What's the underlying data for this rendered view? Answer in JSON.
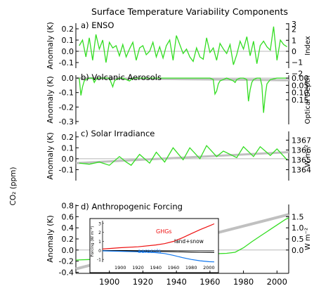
{
  "chart_data": {
    "title": "Surface Temperature Variability Components",
    "left_label": "CO₂ (ppm)",
    "x_ticks": [
      1900,
      1920,
      1940,
      1960,
      1980,
      2000
    ],
    "xlim": [
      1880,
      2007
    ],
    "colors": {
      "series": "#33dd22",
      "trend": "#c0c0c0",
      "ghg": "#ee1111",
      "aerosols": "#1177ee",
      "land": "#000000"
    },
    "panels": [
      {
        "label": "a) ENSO",
        "ylabel": "Anomaly (K)",
        "ylim": [
          -0.15,
          0.25
        ],
        "y_ticks": [
          "0.2",
          "0.1",
          "0.0",
          "-0.1"
        ],
        "y_tick_values": [
          0.2,
          0.1,
          0.0,
          -0.1
        ],
        "right_label": "Index",
        "right_ticks": [
          "3",
          "2",
          "1",
          "0",
          "−1",
          "−2"
        ],
        "right_tick_values": [
          0.245,
          0.196,
          0.098,
          0.0,
          -0.098,
          -0.196
        ],
        "series_x": [
          1882,
          1884,
          1886,
          1888,
          1890,
          1892,
          1894,
          1896,
          1898,
          1900,
          1902,
          1904,
          1906,
          1908,
          1910,
          1912,
          1914,
          1916,
          1918,
          1920,
          1922,
          1924,
          1926,
          1928,
          1930,
          1932,
          1934,
          1936,
          1938,
          1940,
          1942,
          1944,
          1946,
          1948,
          1950,
          1952,
          1954,
          1956,
          1958,
          1960,
          1962,
          1964,
          1966,
          1968,
          1970,
          1972,
          1974,
          1976,
          1978,
          1980,
          1982,
          1984,
          1986,
          1988,
          1990,
          1992,
          1994,
          1996,
          1998,
          2000,
          2002,
          2004,
          2006
        ],
        "series_y": [
          0.05,
          0.1,
          -0.05,
          0.12,
          -0.08,
          0.15,
          0.02,
          0.1,
          -0.1,
          0.08,
          0.03,
          0.05,
          -0.04,
          0.06,
          -0.05,
          0.02,
          0.08,
          -0.08,
          0.03,
          0.05,
          -0.03,
          0.0,
          0.08,
          -0.05,
          0.04,
          -0.06,
          0.05,
          0.1,
          -0.08,
          0.14,
          0.06,
          -0.02,
          0.02,
          -0.05,
          -0.09,
          0.03,
          -0.05,
          -0.07,
          0.12,
          -0.01,
          0.03,
          -0.08,
          0.07,
          0.02,
          -0.02,
          0.06,
          -0.12,
          -0.03,
          0.09,
          0.02,
          0.13,
          -0.04,
          0.09,
          -0.11,
          0.05,
          0.09,
          0.04,
          0.01,
          0.22,
          -0.08,
          0.1,
          0.06,
          0.04
        ]
      },
      {
        "label": "b) Volcanic Aerosols",
        "ylabel": "Anomaly (K)",
        "ylim": [
          -0.32,
          0.02
        ],
        "y_ticks": [
          "0.0",
          "-0.1",
          "-0.2",
          "-0.3"
        ],
        "y_tick_values": [
          0.0,
          -0.1,
          -0.2,
          -0.3
        ],
        "right_label": "Optical Depth",
        "right_ticks": [
          "0.00",
          "0.05",
          "0.10",
          "0.15"
        ],
        "right_tick_values": [
          0.0,
          -0.05,
          -0.1,
          -0.15
        ],
        "series_x": [
          1882,
          1883,
          1884,
          1885,
          1886,
          1888,
          1890,
          1891,
          1892,
          1893,
          1894,
          1896,
          1900,
          1902,
          1903,
          1904,
          1906,
          1908,
          1912,
          1913,
          1914,
          1920,
          1930,
          1940,
          1950,
          1960,
          1962,
          1963,
          1964,
          1965,
          1966,
          1968,
          1970,
          1974,
          1975,
          1976,
          1978,
          1980,
          1982,
          1983,
          1984,
          1985,
          1986,
          1988,
          1990,
          1991,
          1992,
          1993,
          1994,
          1996,
          2000,
          2004,
          2006
        ],
        "series_y": [
          0.0,
          -0.12,
          -0.06,
          -0.02,
          -0.01,
          0.0,
          0.0,
          -0.03,
          -0.01,
          0.0,
          0.0,
          0.0,
          0.0,
          -0.06,
          -0.02,
          -0.01,
          0.0,
          0.0,
          -0.02,
          -0.01,
          0.0,
          0.0,
          0.0,
          0.0,
          0.0,
          0.0,
          -0.01,
          -0.11,
          -0.09,
          -0.04,
          -0.02,
          -0.01,
          0.0,
          -0.02,
          -0.03,
          -0.01,
          0.0,
          0.0,
          -0.01,
          -0.16,
          -0.08,
          -0.03,
          -0.01,
          0.0,
          0.0,
          -0.05,
          -0.24,
          -0.12,
          -0.04,
          -0.01,
          0.0,
          0.0,
          0.0
        ],
        "trend_x": [
          1880,
          2007
        ],
        "trend_y": [
          0.0,
          -0.015
        ]
      },
      {
        "label": "c) Solar Irradiance",
        "ylabel": "Anomaly (K)",
        "ylim": [
          -0.2,
          0.25
        ],
        "y_ticks": [
          "0.2",
          "0.1",
          "0.0",
          "-0.1"
        ],
        "y_tick_values": [
          0.2,
          0.1,
          0.0,
          -0.1
        ],
        "right_label": "W m⁻²",
        "right_ticks": [
          "1367",
          "1366",
          "1365",
          "1364"
        ],
        "right_tick_values": [
          0.17,
          0.08,
          -0.01,
          -0.1
        ],
        "series_x": [
          1882,
          1888,
          1894,
          1900,
          1906,
          1910,
          1913,
          1918,
          1924,
          1928,
          1933,
          1938,
          1944,
          1948,
          1954,
          1958,
          1964,
          1968,
          1976,
          1980,
          1986,
          1990,
          1996,
          2000,
          2006
        ],
        "series_y": [
          -0.04,
          -0.05,
          -0.03,
          -0.06,
          0.02,
          -0.03,
          -0.06,
          0.04,
          -0.04,
          0.06,
          -0.03,
          0.1,
          -0.01,
          0.1,
          0.0,
          0.12,
          0.02,
          0.07,
          0.01,
          0.11,
          0.02,
          0.11,
          0.03,
          0.09,
          -0.01
        ],
        "trend_x": [
          1880,
          2007
        ],
        "trend_y": [
          -0.04,
          0.06
        ]
      },
      {
        "label": "d) Anthropogenic Forcing",
        "ylabel": "Anomaly (K)",
        "ylim": [
          -0.42,
          0.82
        ],
        "y_ticks": [
          "0.8",
          "0.6",
          "0.4",
          "0.2",
          "0.0",
          "-0.2",
          "-0.4"
        ],
        "y_tick_values": [
          0.8,
          0.6,
          0.4,
          0.2,
          0.0,
          -0.2,
          -0.4
        ],
        "right_label": "W m⁻²",
        "right_ticks": [
          "1.5",
          "1.0",
          "0.5",
          "0.0"
        ],
        "right_tick_values": [
          0.6,
          0.4,
          0.2,
          0.0
        ],
        "series_x": [
          1880,
          1890,
          1900,
          1910,
          1920,
          1930,
          1940,
          1950,
          1960,
          1970,
          1975,
          1980,
          1985,
          1990,
          1995,
          2000,
          2005,
          2007
        ],
        "series_y": [
          -0.18,
          -0.17,
          -0.15,
          -0.14,
          -0.12,
          -0.1,
          -0.08,
          -0.06,
          -0.07,
          -0.06,
          -0.04,
          0.04,
          0.15,
          0.25,
          0.35,
          0.45,
          0.55,
          0.58
        ],
        "trend_x": [
          1880,
          2007
        ],
        "trend_y": [
          -0.34,
          0.64
        ],
        "inset": {
          "ylabel": "Forcing (W m⁻²)",
          "y_ticks": [
            "3",
            "2",
            "1",
            "0",
            "-1"
          ],
          "y_tick_values": [
            3,
            2,
            1,
            0,
            -1
          ],
          "ylim": [
            -1.3,
            3.3
          ],
          "x_ticks": [
            1900,
            1920,
            1940,
            1960,
            1980,
            2000
          ],
          "xlim": [
            1880,
            2006
          ],
          "ghg_label": "GHGs",
          "land_label": "land+snow",
          "aerosols_label": "aerosols",
          "x": [
            1880,
            1900,
            1920,
            1940,
            1950,
            1960,
            1970,
            1980,
            1990,
            2000,
            2006
          ],
          "ghg": [
            0.15,
            0.3,
            0.4,
            0.6,
            0.75,
            1.0,
            1.4,
            1.85,
            2.3,
            2.7,
            2.95
          ],
          "land": [
            -0.02,
            -0.05,
            -0.08,
            -0.1,
            -0.12,
            -0.14,
            -0.16,
            -0.18,
            -0.19,
            -0.2,
            -0.21
          ],
          "aerosols": [
            -0.05,
            -0.1,
            -0.15,
            -0.25,
            -0.35,
            -0.55,
            -0.8,
            -1.0,
            -1.15,
            -1.25,
            -1.28
          ]
        }
      }
    ]
  }
}
